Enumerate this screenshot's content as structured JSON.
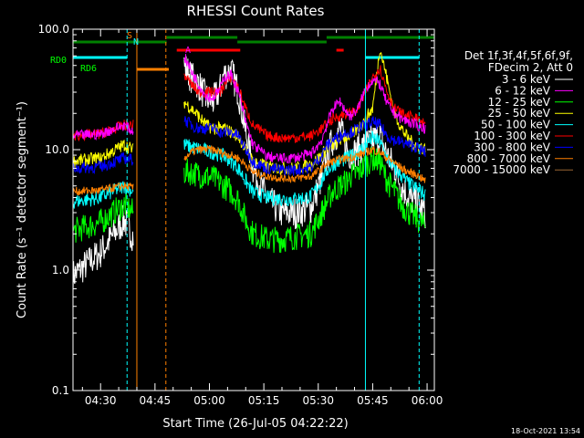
{
  "chart_data": {
    "type": "line",
    "title": "RHESSI Count Rates",
    "xlabel": "Start Time (26-Jul-05 04:22:22)",
    "ylabel": "Count Rate (s⁻¹ detector segment⁻¹)",
    "ylog": true,
    "ylim": [
      0.1,
      100
    ],
    "xlim_minutes": [
      262.4,
      362
    ],
    "x_ticks": [
      {
        "label": "04:30",
        "min": 270
      },
      {
        "label": "04:45",
        "min": 285
      },
      {
        "label": "05:00",
        "min": 300
      },
      {
        "label": "05:15",
        "min": 315
      },
      {
        "label": "05:30",
        "min": 330
      },
      {
        "label": "05:45",
        "min": 345
      },
      {
        "label": "06:00",
        "min": 360
      }
    ],
    "y_ticks": [
      {
        "label": "0.1",
        "v": 0.1
      },
      {
        "label": "1.0",
        "v": 1
      },
      {
        "label": "10.0",
        "v": 10
      },
      {
        "label": "100.0",
        "v": 100
      }
    ],
    "legend_header": [
      "Det 1f,3f,4f,5f,6f,9f,",
      "FDecim 2, Att 0"
    ],
    "series": [
      {
        "name": "3 - 6 keV",
        "color": "#ffffff",
        "x": [
          262.4,
          270,
          276.5,
          279,
          283,
          286.5,
          288,
          291,
          293,
          295,
          297,
          299,
          301,
          303,
          304,
          306,
          308,
          310,
          312,
          316,
          320,
          324,
          328,
          331,
          332,
          334,
          336,
          338,
          339,
          341,
          343,
          345,
          347,
          349,
          351,
          353,
          355,
          357,
          359.5
        ],
        "y": [
          0.9,
          1.4,
          2.6,
          1.9,
          0,
          0,
          0,
          0,
          50,
          40,
          35,
          27,
          25,
          32,
          42,
          45,
          30,
          14,
          7,
          3.8,
          3.0,
          3.0,
          3.3,
          6,
          8,
          12,
          15,
          10,
          9,
          10,
          11,
          12,
          13,
          9,
          7,
          5,
          4,
          3.6,
          3.0
        ]
      },
      {
        "name": "6 - 12 keV",
        "color": "#ff00ff",
        "x": [
          262.4,
          270,
          276.5,
          279,
          283,
          286.5,
          288,
          291,
          293,
          295,
          297,
          299,
          301,
          303,
          304,
          306,
          308,
          310,
          312,
          316,
          320,
          324,
          328,
          331,
          332,
          334,
          336,
          338,
          339,
          341,
          343,
          345,
          347,
          349,
          351,
          353,
          355,
          357,
          359.5
        ],
        "y": [
          13,
          13.5,
          16,
          14,
          0,
          0,
          0,
          0,
          60,
          45,
          35,
          28,
          27,
          32,
          40,
          42,
          30,
          17,
          11,
          8.8,
          8.4,
          8.6,
          9.2,
          12,
          15,
          22,
          25,
          20,
          19,
          22,
          32,
          38,
          35,
          24,
          20,
          18,
          17,
          16,
          15
        ]
      },
      {
        "name": "12 - 25 keV",
        "color": "#00ff00",
        "x": [
          262.4,
          270,
          276.5,
          279,
          283,
          286.5,
          288,
          291,
          293,
          295,
          297,
          299,
          301,
          303,
          304,
          306,
          308,
          310,
          312,
          316,
          320,
          324,
          328,
          331,
          332,
          334,
          336,
          338,
          339,
          341,
          343,
          345,
          347,
          349,
          351,
          353,
          355,
          357,
          359.5
        ],
        "y": [
          2.1,
          2.5,
          3.5,
          3.0,
          0,
          0,
          0,
          0,
          6.5,
          6.5,
          6.2,
          6.0,
          5.8,
          5.3,
          5.0,
          4.5,
          3.8,
          2.6,
          2.0,
          1.8,
          1.8,
          1.9,
          2.0,
          3.0,
          3.5,
          4.5,
          5.0,
          5.5,
          6.0,
          6.5,
          7.5,
          8.5,
          7.8,
          5.5,
          4.5,
          3.5,
          3.0,
          2.7,
          2.3
        ]
      },
      {
        "name": "25 - 50 keV",
        "color": "#ffff00",
        "x": [
          262.4,
          270,
          276.5,
          279,
          283,
          286.5,
          288,
          291,
          293,
          295,
          297,
          299,
          301,
          303,
          304,
          306,
          308,
          310,
          312,
          316,
          320,
          324,
          328,
          331,
          332,
          334,
          336,
          338,
          339,
          341,
          343,
          345,
          347,
          349,
          351,
          353,
          355,
          357,
          359.5
        ],
        "y": [
          8,
          8.5,
          11,
          10,
          0,
          0,
          0,
          0,
          25,
          22,
          19,
          16,
          15,
          15,
          15,
          14,
          13,
          10,
          8,
          7.2,
          7.0,
          7.0,
          7.5,
          9,
          10,
          11,
          12,
          13,
          13,
          15,
          18,
          22,
          70,
          38,
          20,
          15,
          12,
          11,
          10
        ]
      },
      {
        "name": "50 - 100 keV",
        "color": "#00ffff",
        "x": [
          262.4,
          270,
          276.5,
          279,
          283,
          286.5,
          288,
          291,
          293,
          295,
          297,
          299,
          301,
          303,
          304,
          306,
          308,
          310,
          312,
          316,
          320,
          324,
          328,
          331,
          332,
          334,
          336,
          338,
          339,
          341,
          343,
          345,
          347,
          349,
          351,
          353,
          355,
          357,
          359.5
        ],
        "y": [
          3.7,
          4.0,
          5.0,
          4.5,
          0,
          0,
          0,
          0,
          11,
          10.5,
          10.2,
          9.8,
          9.5,
          9.0,
          8.8,
          8.0,
          7.0,
          5.5,
          4.4,
          4.0,
          3.9,
          3.9,
          4.1,
          5.5,
          6.5,
          7.5,
          8.0,
          8.5,
          8.8,
          9.5,
          11,
          12.5,
          11.5,
          8.5,
          7.0,
          6.0,
          5.2,
          4.8,
          4.2
        ]
      },
      {
        "name": "100 - 300 keV",
        "color": "#ff0000",
        "x": [
          262.4,
          270,
          276.5,
          279,
          283,
          286.5,
          288,
          291,
          293,
          295,
          297,
          299,
          301,
          303,
          304,
          306,
          308,
          310,
          312,
          316,
          320,
          324,
          328,
          331,
          332,
          334,
          336,
          338,
          339,
          341,
          343,
          345,
          347,
          349,
          351,
          353,
          355,
          357,
          359.5
        ],
        "y": [
          13,
          13.5,
          16,
          16,
          0,
          0,
          0,
          0,
          42,
          35,
          30,
          30,
          30,
          30,
          34,
          40,
          32,
          22,
          16,
          13,
          12.5,
          12.6,
          13,
          15,
          16,
          18,
          19,
          20,
          20,
          22,
          30,
          40,
          48,
          30,
          22,
          20,
          19,
          18,
          16
        ]
      },
      {
        "name": "300 - 800 keV",
        "color": "#0000ff",
        "x": [
          262.4,
          270,
          276.5,
          279,
          283,
          286.5,
          288,
          291,
          293,
          295,
          297,
          299,
          301,
          303,
          304,
          306,
          308,
          310,
          312,
          316,
          320,
          324,
          328,
          331,
          332,
          334,
          336,
          338,
          339,
          341,
          343,
          345,
          347,
          349,
          351,
          353,
          355,
          357,
          359.5
        ],
        "y": [
          7,
          7.2,
          8.5,
          8.2,
          0,
          0,
          0,
          0,
          18,
          16,
          15,
          15,
          15,
          14,
          14,
          14,
          13,
          10,
          8,
          7,
          6.8,
          6.8,
          7.1,
          9,
          10.5,
          12,
          13,
          14,
          14,
          15,
          16,
          17,
          16,
          13,
          12,
          11.5,
          11,
          10.5,
          9.5
        ]
      },
      {
        "name": "800 - 7000 keV",
        "color": "#ff8000",
        "x": [
          262.4,
          270,
          276.5,
          279,
          283,
          286.5,
          288,
          291,
          293,
          295,
          297,
          299,
          301,
          303,
          304,
          306,
          308,
          310,
          312,
          316,
          320,
          324,
          328,
          331,
          332,
          334,
          336,
          338,
          339,
          341,
          343,
          345,
          347,
          349,
          351,
          353,
          355,
          357,
          359.5
        ],
        "y": [
          4.5,
          4.6,
          5.0,
          4.8,
          0,
          0,
          0,
          0,
          8.5,
          9.5,
          10,
          10,
          10,
          9.5,
          9.3,
          9.0,
          8.5,
          7.5,
          6.5,
          6.0,
          5.8,
          5.8,
          6.0,
          7.0,
          7.5,
          8.0,
          8.3,
          8.5,
          8.6,
          9.0,
          9.5,
          10,
          9.5,
          8.5,
          7.8,
          7.0,
          6.5,
          6.2,
          5.5
        ]
      },
      {
        "name": "7000 - 15000 keV",
        "color": "#996633",
        "x": [],
        "y": []
      }
    ],
    "vlines": [
      {
        "color": "#00ffff",
        "min": 262.4,
        "dash": false
      },
      {
        "color": "#00ffff",
        "min": 277.3,
        "dash": true
      },
      {
        "color": "#ff8000",
        "min": 280.0,
        "dash": false
      },
      {
        "color": "#ff8000",
        "min": 288.0,
        "dash": true
      },
      {
        "color": "#00ffff",
        "min": 343.0,
        "dash": false
      },
      {
        "color": "#00ffff",
        "min": 357.8,
        "dash": true
      }
    ],
    "bars": [
      {
        "color": "#00ffff",
        "y": 63,
        "x0": 262.4,
        "x1": 277.3
      },
      {
        "color": "#00ffff",
        "y": 63,
        "x0": 343.0,
        "x1": 357.8
      },
      {
        "color": "#ff8000",
        "y": 76,
        "x0": 280.0,
        "x1": 288.8
      },
      {
        "color": "#ff0000",
        "y": 55,
        "x0": 291,
        "x1": 308.5
      },
      {
        "color": "#ff0000",
        "y": 55,
        "x0": 335,
        "x1": 337
      },
      {
        "color": "#008000",
        "y": 46,
        "x0": 262.4,
        "x1": 288.2
      },
      {
        "color": "#008000",
        "y": 41,
        "x0": 288.2,
        "x1": 307.7
      },
      {
        "color": "#008000",
        "y": 46,
        "x0": 307.7,
        "x1": 332.3
      },
      {
        "color": "#008000",
        "y": 41,
        "x0": 332.3,
        "x1": 362
      }
    ],
    "annotations": [
      {
        "text": "RD0",
        "color": "#00ff00"
      },
      {
        "text": "RD6",
        "color": "#00ff00"
      },
      {
        "text": "S",
        "color": "#ff8000"
      },
      {
        "text": "N",
        "color": "#00ffff"
      },
      {
        "text": "A",
        "color": "#ff00ff"
      }
    ],
    "footer_timestamp": "18-Oct-2021 13:54"
  }
}
